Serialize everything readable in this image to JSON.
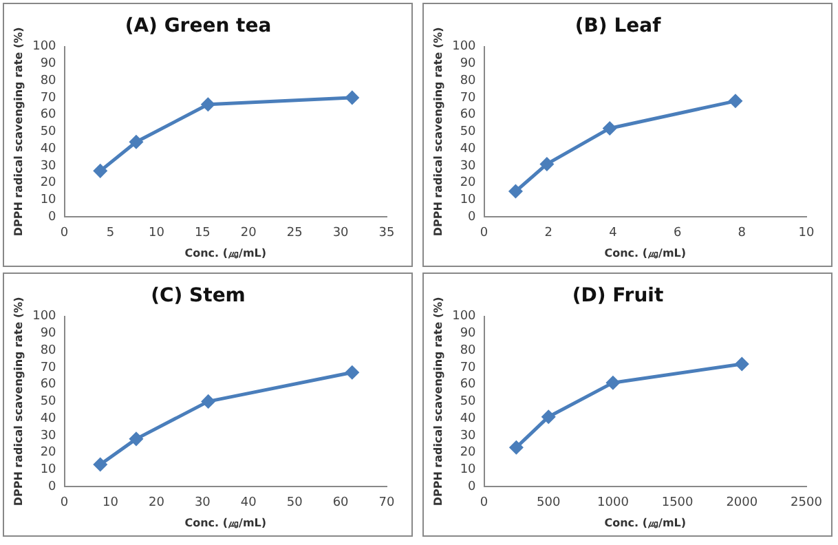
{
  "chart_data": [
    {
      "type": "line",
      "title": "(A) Green tea",
      "xlabel": "Conc. (㎍/mL)",
      "ylabel": "DPPH radical scavenging rate (%)",
      "x": [
        3.9,
        7.8,
        15.6,
        31.25
      ],
      "series": [
        {
          "color": "#4a7ebb",
          "values": [
            27,
            44,
            66,
            70
          ]
        }
      ],
      "xlim": [
        0,
        35
      ],
      "xticks": [
        0,
        5,
        10,
        15,
        20,
        25,
        30,
        35
      ],
      "ylim": [
        0,
        100
      ],
      "yticks": [
        0,
        10,
        20,
        30,
        40,
        50,
        60,
        70,
        80,
        90,
        100
      ],
      "grid": false,
      "legend": false,
      "marker": "diamond",
      "line_style": "solid"
    },
    {
      "type": "line",
      "title": "(B) Leaf",
      "xlabel": "Conc. (㎍/mL)",
      "ylabel": "DPPH radical scavenging rate (%)",
      "x": [
        0.98,
        1.95,
        3.9,
        7.8
      ],
      "series": [
        {
          "color": "#4a7ebb",
          "values": [
            15,
            31,
            52,
            68
          ]
        }
      ],
      "xlim": [
        0,
        10
      ],
      "xticks": [
        0,
        2,
        4,
        6,
        8,
        10
      ],
      "ylim": [
        0,
        100
      ],
      "yticks": [
        0,
        10,
        20,
        30,
        40,
        50,
        60,
        70,
        80,
        90,
        100
      ],
      "grid": false,
      "legend": false,
      "marker": "diamond",
      "line_style": "solid"
    },
    {
      "type": "line",
      "title": "(C) Stem",
      "xlabel": "Conc. (㎍/mL)",
      "ylabel": "DPPH radical scavenging rate (%)",
      "x": [
        7.8,
        15.6,
        31.25,
        62.5
      ],
      "series": [
        {
          "color": "#4a7ebb",
          "values": [
            13,
            28,
            50,
            67
          ]
        }
      ],
      "xlim": [
        0,
        70
      ],
      "xticks": [
        0,
        10,
        20,
        30,
        40,
        50,
        60,
        70
      ],
      "ylim": [
        0,
        100
      ],
      "yticks": [
        0,
        10,
        20,
        30,
        40,
        50,
        60,
        70,
        80,
        90,
        100
      ],
      "grid": false,
      "legend": false,
      "marker": "diamond",
      "line_style": "solid"
    },
    {
      "type": "line",
      "title": "(D) Fruit",
      "xlabel": "Conc. (㎍/mL)",
      "ylabel": "DPPH radical scavenging rate (%)",
      "x": [
        250,
        500,
        1000,
        2000
      ],
      "series": [
        {
          "color": "#4a7ebb",
          "values": [
            23,
            41,
            61,
            72
          ]
        }
      ],
      "xlim": [
        0,
        2500
      ],
      "xticks": [
        0,
        500,
        1000,
        1500,
        2000,
        2500
      ],
      "ylim": [
        0,
        100
      ],
      "yticks": [
        0,
        10,
        20,
        30,
        40,
        50,
        60,
        70,
        80,
        90,
        100
      ],
      "grid": false,
      "legend": false,
      "marker": "diamond",
      "line_style": "solid"
    }
  ]
}
